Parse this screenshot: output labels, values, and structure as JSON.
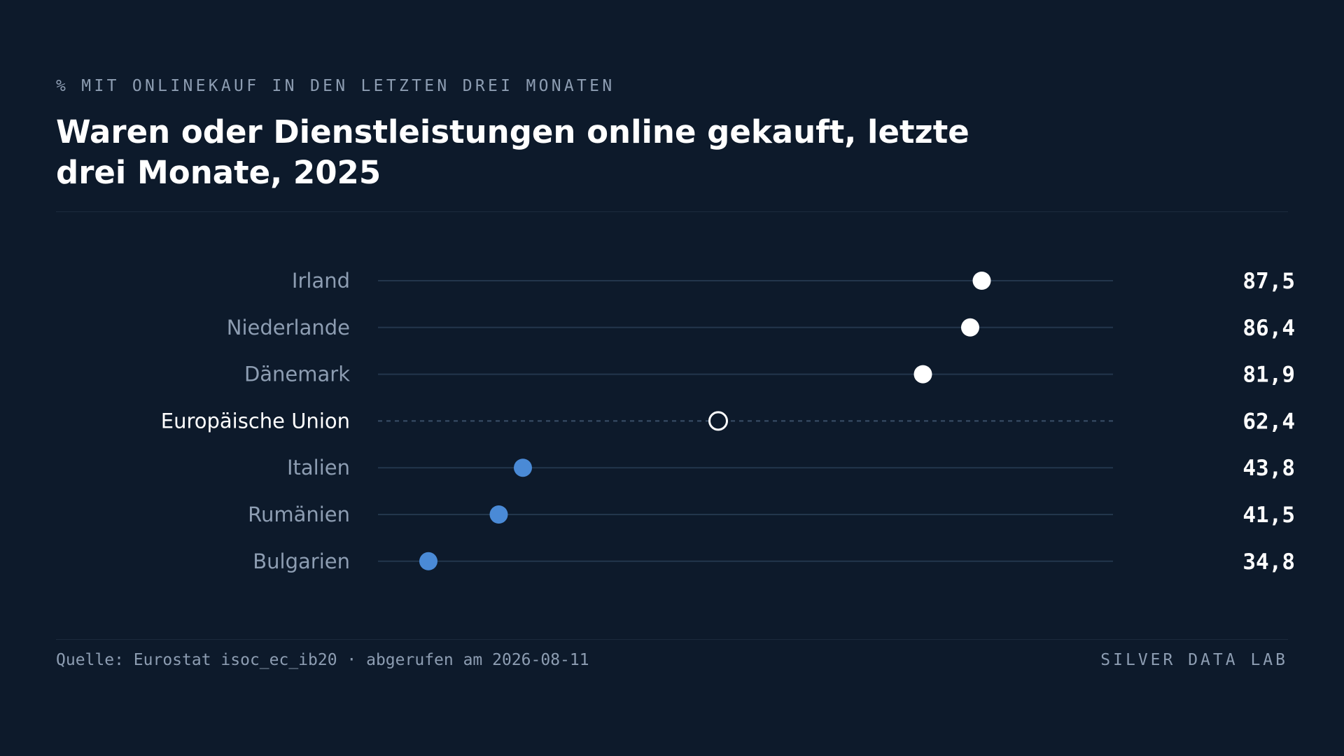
{
  "header": {
    "kicker": "% MIT ONLINEKAUF IN DEN LETZTEN DREI MONATEN",
    "title": "Waren oder Dienstleistungen online gekauft, letzte drei Monate, 2025"
  },
  "footer": {
    "source": "Quelle: Eurostat isoc_ec_ib20 · abgerufen am 2026-08-11",
    "brand": "SILVER DATA LAB"
  },
  "colors": {
    "background": "#0d1a2b",
    "high": "#ffffff",
    "low": "#4a8ad6",
    "reference": "#ffffff",
    "track": "#23364c",
    "label": "#8d9db2"
  },
  "chart_data": {
    "type": "dot",
    "title": "Waren oder Dienstleistungen online gekauft, letzte drei Monate, 2025",
    "xlim": [
      30,
      100
    ],
    "grid": false,
    "legend": "none",
    "categories": [
      "Irland",
      "Niederlande",
      "Dänemark",
      "Europäische Union",
      "Italien",
      "Rumänien",
      "Bulgarien"
    ],
    "values": [
      87.5,
      86.4,
      81.9,
      62.4,
      43.8,
      41.5,
      34.8
    ],
    "value_labels": [
      "87,5",
      "86,4",
      "81,9",
      "62,4",
      "43,8",
      "41,5",
      "34,8"
    ],
    "reference_category": "Europäische Union"
  }
}
